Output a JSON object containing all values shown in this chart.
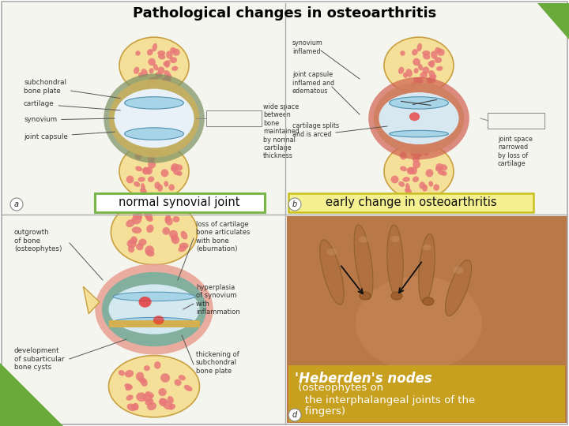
{
  "title": "Pathological changes in osteoarthritis",
  "title_fontsize": 13,
  "title_fontweight": "bold",
  "title_color": "#000000",
  "background_color": "#ffffff",
  "green_color": "#6aaa3a",
  "bone_color": "#f5e09a",
  "bone_edge_color": "#c8a040",
  "cartilage_color": "#a8d4e8",
  "cartilage_edge_color": "#5090b0",
  "synovium_color": "#e8a090",
  "capsule_color": "#7a9060",
  "capsule_oa_color": "#d06050",
  "pink_spot_color": "#e87878",
  "label1_text": "normal synovial joint",
  "label1_box_color": "#ffffff",
  "label1_border_color": "#7ab648",
  "label2_text": "early change in osteoarthritis",
  "label2_box_color": "#f5f090",
  "label2_border_color": "#c8c020",
  "label3_box_color": "#c8a020",
  "heberden_bold": "'Heberden's nodes",
  "heberden_normal": " (osteophytes on\n   the interphalangeal joints of the\n   fingers)",
  "annot_color": "#333333",
  "annot_fontsize": 6.5,
  "border_color": "#aaaaaa",
  "panel_bg": "#f5f5f0"
}
